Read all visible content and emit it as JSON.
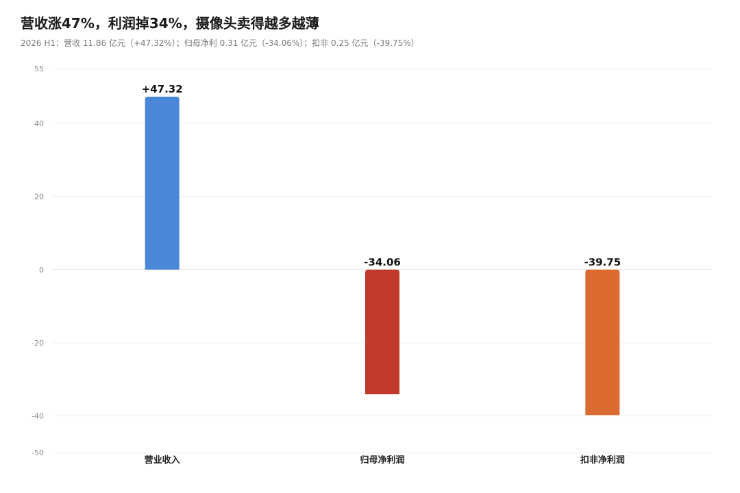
{
  "chart_data": {
    "type": "bar",
    "title": "营收涨47%，利润掉34%，摄像头卖得越多越薄",
    "subtitle": "2026 H1：营收 11.86 亿元（+47.32%）；归母净利 0.31 亿元（-34.06%）；扣非 0.25 亿元（-39.75%）",
    "categories": [
      "营业收入",
      "归母净利润",
      "扣非净利润"
    ],
    "values": [
      47.32,
      -34.06,
      -39.75
    ],
    "data_labels": [
      "+47.32",
      "-34.06",
      "-39.75"
    ],
    "colors": [
      "#4a87d8",
      "#c0392b",
      "#db6b30"
    ],
    "yticks": [
      55,
      40,
      20,
      0,
      -20,
      -40,
      -50
    ],
    "ylim": [
      -50,
      55
    ],
    "grid": true,
    "xlabel": "",
    "ylabel": ""
  }
}
